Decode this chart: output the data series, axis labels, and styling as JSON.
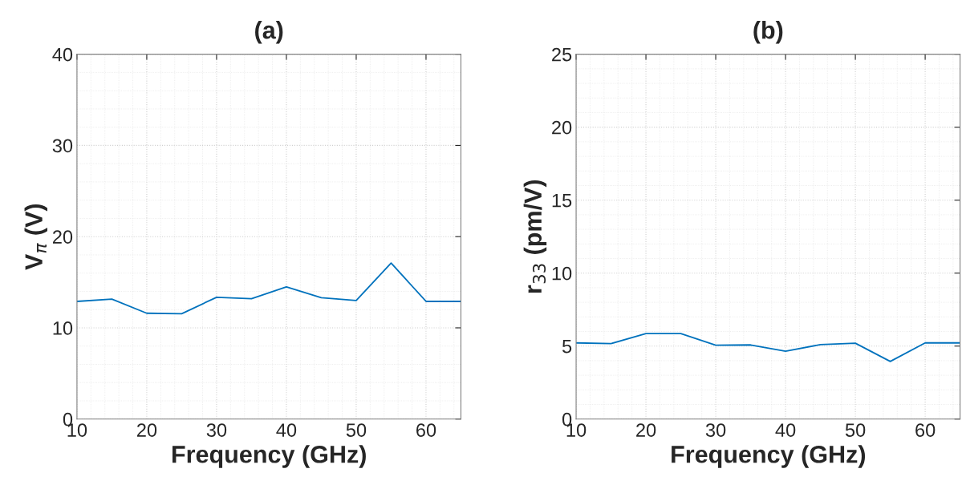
{
  "chart_data": [
    {
      "type": "line",
      "title": "(a)",
      "xlabel": "Frequency (GHz)",
      "ylabel": "V$_{π}$ (V)",
      "x": [
        10,
        15,
        20,
        25,
        30,
        35,
        40,
        45,
        50,
        55,
        60,
        65
      ],
      "series": [
        {
          "color": "#0072bd",
          "values": [
            12.9,
            13.15,
            11.6,
            11.55,
            13.35,
            13.2,
            14.5,
            13.3,
            13.0,
            17.1,
            12.9,
            12.9
          ]
        }
      ],
      "xlim": [
        10,
        65
      ],
      "xticks": [
        10,
        20,
        30,
        40,
        50,
        60
      ],
      "ylim": [
        0,
        40
      ],
      "yticks": [
        0,
        10,
        20,
        30,
        40
      ],
      "grid": true,
      "marker": "none",
      "line_style": "solid"
    },
    {
      "type": "line",
      "title": "(b)",
      "xlabel": "Frequency (GHz)",
      "ylabel": "r$_{33}$ (pm/V)",
      "x": [
        10,
        15,
        20,
        25,
        30,
        35,
        40,
        45,
        50,
        55,
        60,
        65
      ],
      "series": [
        {
          "color": "#0072bd",
          "values": [
            5.22,
            5.17,
            5.86,
            5.86,
            5.06,
            5.08,
            4.65,
            5.1,
            5.2,
            3.95,
            5.22,
            5.22
          ]
        }
      ],
      "xlim": [
        10,
        65
      ],
      "xticks": [
        10,
        20,
        30,
        40,
        50,
        60
      ],
      "ylim": [
        0,
        25
      ],
      "yticks": [
        0,
        5,
        10,
        15,
        20,
        25
      ],
      "grid": true,
      "marker": "none",
      "line_style": "solid"
    }
  ]
}
